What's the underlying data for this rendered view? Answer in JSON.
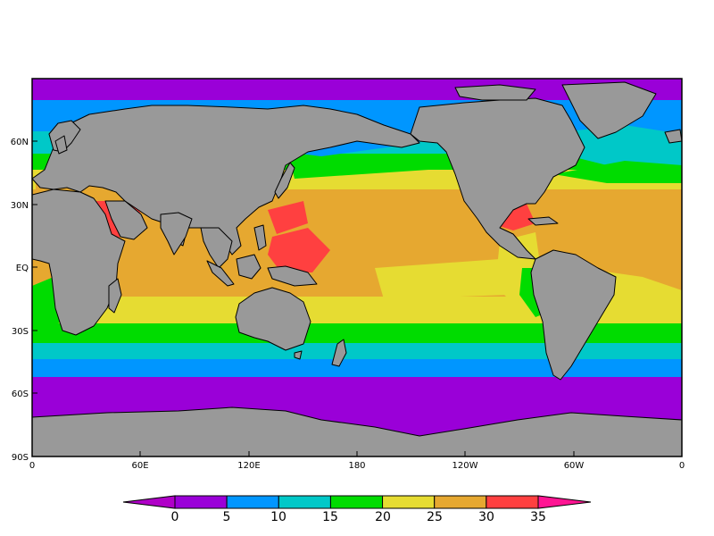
{
  "map": {
    "lat_labels": [
      "60N",
      "30N",
      "EQ",
      "30S",
      "60S",
      "90S"
    ],
    "lon_labels": [
      "0",
      "60E",
      "120E",
      "180",
      "120W",
      "60W",
      "0"
    ]
  },
  "legend": {
    "ticks": [
      "0",
      "5",
      "10",
      "15",
      "20",
      "25",
      "30",
      "35"
    ],
    "colors": [
      "#9a00d8",
      "#0096ff",
      "#00c8c8",
      "#00dc00",
      "#e6dc32",
      "#e6a830",
      "#ff4040"
    ],
    "under_color": "#b000c8",
    "over_color": "#ff1493"
  },
  "colors": {
    "land": "#999999",
    "coast": "#000000"
  }
}
